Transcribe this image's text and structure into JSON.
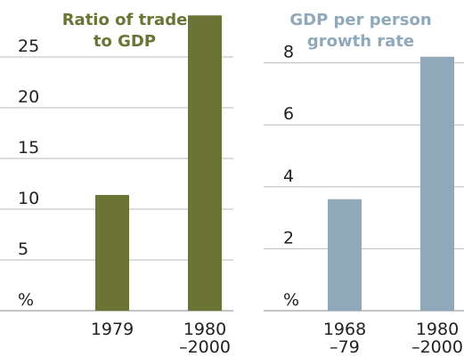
{
  "chart_data": [
    {
      "type": "bar",
      "title": [
        "Ratio of trade",
        "to GDP"
      ],
      "color": "#6b7335",
      "categories": [
        "1979",
        "1980\n–2000"
      ],
      "values": [
        11.4,
        29.1
      ],
      "ylim": [
        0,
        29.3
      ],
      "yticks": [
        {
          "value": 0,
          "label": "%"
        },
        5,
        10,
        15,
        20,
        25
      ],
      "grid": true
    },
    {
      "type": "bar",
      "title": [
        "GDP per person",
        "growth rate"
      ],
      "color": "#8fa9bb",
      "categories": [
        "1968\n–79",
        "1980\n–2000"
      ],
      "values": [
        3.6,
        8.2
      ],
      "ylim": [
        0,
        8.45
      ],
      "yticks": [
        {
          "value": 0,
          "label": "%"
        },
        2,
        4,
        6,
        8
      ],
      "grid": true
    }
  ]
}
